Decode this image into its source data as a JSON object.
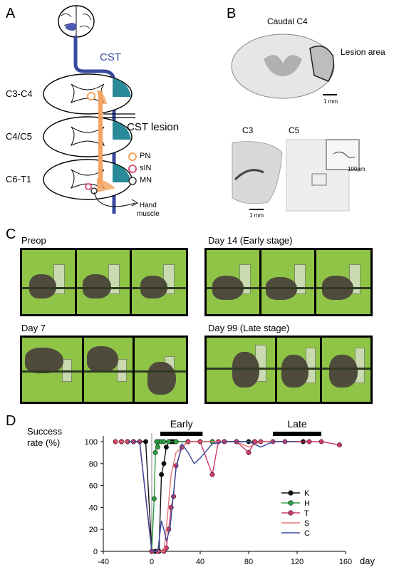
{
  "panels": {
    "A": {
      "letter": "A",
      "cst": "CST",
      "levels": [
        "C3-C4",
        "C4/C5",
        "C6-T1"
      ],
      "cst_lesion": "CST lesion",
      "legend": [
        {
          "label": "PN",
          "color": "#f4a460"
        },
        {
          "label": "sIN",
          "color": "#d9557a"
        },
        {
          "label": "MN",
          "color": "#333333"
        }
      ],
      "hand_muscle": [
        "Hand",
        "muscle"
      ],
      "colors": {
        "cst": "#3a4aa0",
        "lesion": "#2a8a9a",
        "pn": "#f4a460"
      }
    },
    "B": {
      "letter": "B",
      "caudal": "Caudal C4",
      "lesion_area": "Lesion area",
      "scale_1mm": "1 mm",
      "c3": "C3",
      "c5": "C5",
      "scale_100": "100µm",
      "scale_1mm_b": "1 mm"
    },
    "C": {
      "letter": "C",
      "conditions": [
        "Preop",
        "Day 14 (Early stage)",
        "Day 7",
        "Day 99 (Late stage)"
      ]
    },
    "D": {
      "letter": "D"
    }
  },
  "chart_data": {
    "type": "line",
    "ylabel": "Success rate (%)",
    "xlabel": "day",
    "xlim": [
      -40,
      160
    ],
    "ylim": [
      0,
      100
    ],
    "xticks": [
      -40,
      0,
      40,
      80,
      120,
      160
    ],
    "yticks": [
      0,
      20,
      40,
      60,
      80,
      100
    ],
    "stages": [
      {
        "label": "Early",
        "x": [
          7,
          42
        ]
      },
      {
        "label": "Late",
        "x": [
          100,
          140
        ]
      }
    ],
    "series": [
      {
        "name": "K",
        "color": "#111111",
        "marker": true,
        "x": [
          -25,
          -20,
          -15,
          -10,
          -5,
          0,
          3,
          6,
          8,
          10,
          12,
          14,
          16,
          18,
          20,
          30,
          40,
          50,
          60,
          70,
          80,
          125
        ],
        "y": [
          100,
          100,
          100,
          100,
          100,
          0,
          0,
          0,
          70,
          80,
          95,
          100,
          100,
          100,
          100,
          100,
          100,
          100,
          100,
          100,
          100,
          100
        ]
      },
      {
        "name": "H",
        "color": "#2e9e45",
        "marker": true,
        "x": [
          -25,
          -20,
          -15,
          -10,
          0,
          2,
          3,
          4,
          5,
          6,
          8,
          10,
          14,
          20,
          30,
          50,
          70,
          85
        ],
        "y": [
          100,
          100,
          100,
          100,
          0,
          48,
          90,
          100,
          95,
          100,
          100,
          100,
          100,
          100,
          100,
          100,
          100,
          100
        ]
      },
      {
        "name": "T",
        "color": "#cc3a6a",
        "marker": true,
        "x": [
          -30,
          -25,
          -20,
          -15,
          -10,
          0,
          5,
          10,
          12,
          14,
          16,
          18,
          20,
          25,
          30,
          40,
          50,
          55,
          60,
          70,
          80,
          85,
          90,
          100,
          110,
          130,
          140,
          155
        ],
        "y": [
          100,
          100,
          100,
          100,
          100,
          0,
          0,
          0,
          3,
          20,
          40,
          50,
          78,
          95,
          100,
          100,
          70,
          100,
          100,
          100,
          90,
          100,
          100,
          100,
          100,
          100,
          100,
          97
        ]
      },
      {
        "name": "S",
        "color": "#e57373",
        "marker": false,
        "x": [
          -30,
          -20,
          -10,
          0,
          6,
          10,
          12,
          14,
          16,
          20,
          30,
          40,
          50,
          60,
          70,
          80,
          90,
          100,
          120
        ],
        "y": [
          100,
          100,
          100,
          0,
          0,
          0,
          20,
          45,
          70,
          90,
          100,
          100,
          100,
          100,
          100,
          95,
          100,
          100,
          100
        ]
      },
      {
        "name": "C",
        "color": "#3a4aa0",
        "marker": false,
        "x": [
          -20,
          -10,
          0,
          5,
          8,
          10,
          12,
          15,
          20,
          25,
          30,
          35,
          40,
          50,
          60,
          70,
          80,
          90,
          100,
          120
        ],
        "y": [
          100,
          100,
          0,
          0,
          28,
          20,
          10,
          20,
          75,
          98,
          90,
          80,
          85,
          98,
          100,
          100,
          100,
          95,
          100,
          100
        ]
      }
    ]
  }
}
